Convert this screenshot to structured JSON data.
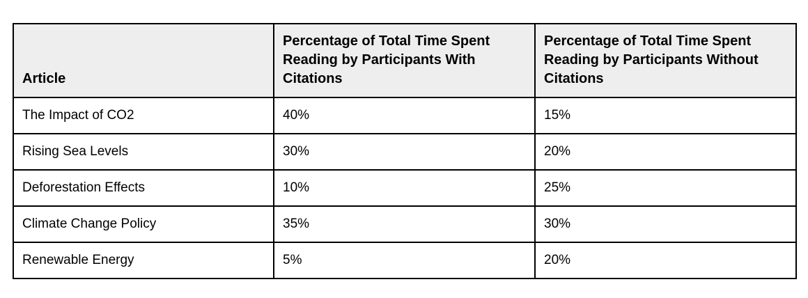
{
  "table": {
    "header": [
      "Article",
      "Percentage of Total Time Spent Reading by Participants With Citations",
      "Percentage of Total Time Spent Reading by Participants Without Citations"
    ],
    "rows": [
      [
        "The Impact of CO2",
        "40%",
        "15%"
      ],
      [
        "Rising Sea Levels",
        "30%",
        "20%"
      ],
      [
        "Deforestation Effects",
        "10%",
        "25%"
      ],
      [
        "Climate Change Policy",
        "35%",
        "30%"
      ],
      [
        "Renewable Energy",
        "5%",
        "20%"
      ]
    ]
  }
}
